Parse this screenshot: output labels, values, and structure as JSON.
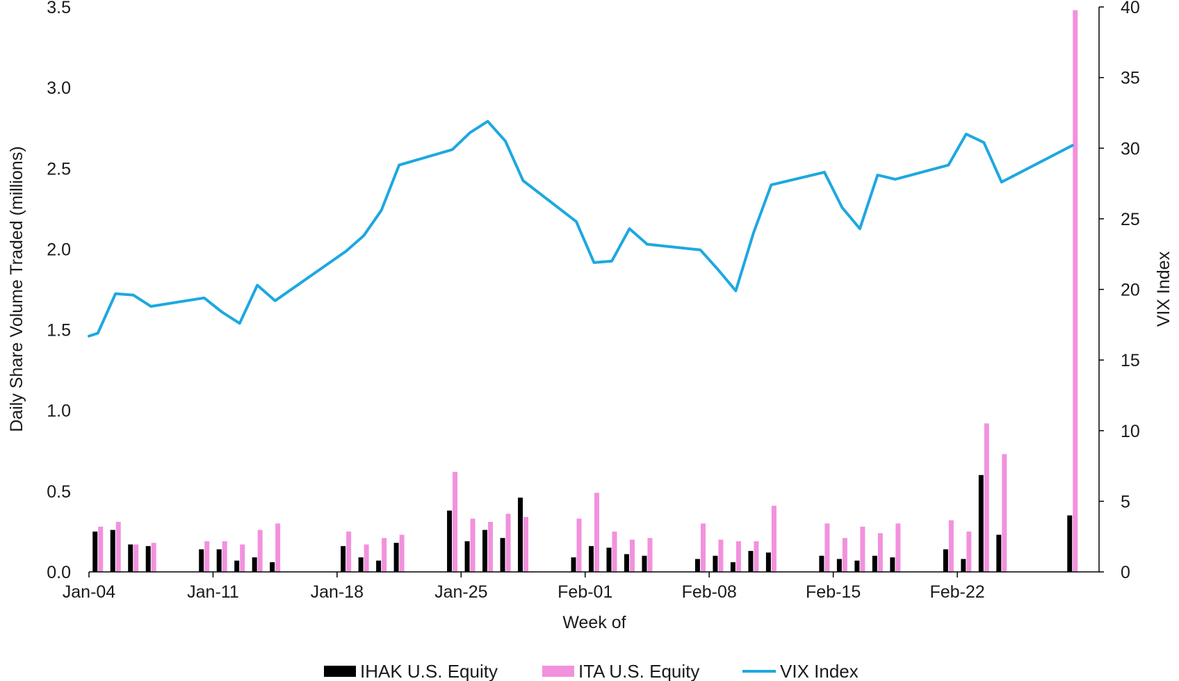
{
  "chart_data": {
    "type": "bar",
    "xlabel": "Week of",
    "ylabel_left": "Daily Share Volume Traded (millions)",
    "ylabel_right": "VIX Index",
    "ylim_left": [
      0,
      3.5
    ],
    "yticks_left": [
      "0.0",
      "0.5",
      "1.0",
      "1.5",
      "2.0",
      "2.5",
      "3.0",
      "3.5"
    ],
    "ylim_right": [
      0,
      40
    ],
    "yticks_right": [
      "0",
      "5",
      "10",
      "15",
      "20",
      "25",
      "30",
      "35",
      "40"
    ],
    "xlim": [
      0,
      57
    ],
    "xtick_labels": [
      {
        "label": "Jan-04",
        "x": 0
      },
      {
        "label": "Jan-11",
        "x": 7
      },
      {
        "label": "Jan-18",
        "x": 14
      },
      {
        "label": "Jan-25",
        "x": 21
      },
      {
        "label": "Feb-01",
        "x": 28
      },
      {
        "label": "Feb-08",
        "x": 35
      },
      {
        "label": "Feb-15",
        "x": 42
      },
      {
        "label": "Feb-22",
        "x": 49
      }
    ],
    "grid": false,
    "legend_position": "bottom",
    "series": [
      {
        "name": "IHAK U.S. Equity",
        "type": "bar",
        "axis": "left",
        "color": "#000000",
        "points": [
          [
            0.5,
            0.25
          ],
          [
            1.5,
            0.26
          ],
          [
            2.5,
            0.17
          ],
          [
            3.5,
            0.16
          ],
          [
            6.5,
            0.14
          ],
          [
            7.5,
            0.14
          ],
          [
            8.5,
            0.07
          ],
          [
            9.5,
            0.09
          ],
          [
            10.5,
            0.06
          ],
          [
            14.5,
            0.16
          ],
          [
            15.5,
            0.09
          ],
          [
            16.5,
            0.07
          ],
          [
            17.5,
            0.18
          ],
          [
            20.5,
            0.38
          ],
          [
            21.5,
            0.19
          ],
          [
            22.5,
            0.26
          ],
          [
            23.5,
            0.21
          ],
          [
            24.5,
            0.46
          ],
          [
            27.5,
            0.09
          ],
          [
            28.5,
            0.16
          ],
          [
            29.5,
            0.15
          ],
          [
            30.5,
            0.11
          ],
          [
            31.5,
            0.1
          ],
          [
            34.5,
            0.08
          ],
          [
            35.5,
            0.1
          ],
          [
            36.5,
            0.06
          ],
          [
            37.5,
            0.13
          ],
          [
            38.5,
            0.12
          ],
          [
            41.5,
            0.1
          ],
          [
            42.5,
            0.08
          ],
          [
            43.5,
            0.07
          ],
          [
            44.5,
            0.1
          ],
          [
            45.5,
            0.09
          ],
          [
            48.5,
            0.14
          ],
          [
            49.5,
            0.08
          ],
          [
            50.5,
            0.6
          ],
          [
            51.5,
            0.23
          ],
          [
            55.5,
            0.35
          ]
        ]
      },
      {
        "name": "ITA U.S. Equity",
        "type": "bar",
        "axis": "left",
        "color": "#f291dd",
        "points": [
          [
            0.5,
            0.28
          ],
          [
            1.5,
            0.31
          ],
          [
            2.5,
            0.17
          ],
          [
            3.5,
            0.18
          ],
          [
            6.5,
            0.19
          ],
          [
            7.5,
            0.19
          ],
          [
            8.5,
            0.17
          ],
          [
            9.5,
            0.26
          ],
          [
            10.5,
            0.3
          ],
          [
            14.5,
            0.25
          ],
          [
            15.5,
            0.17
          ],
          [
            16.5,
            0.21
          ],
          [
            17.5,
            0.23
          ],
          [
            20.5,
            0.62
          ],
          [
            21.5,
            0.33
          ],
          [
            22.5,
            0.31
          ],
          [
            23.5,
            0.36
          ],
          [
            24.5,
            0.34
          ],
          [
            27.5,
            0.33
          ],
          [
            28.5,
            0.49
          ],
          [
            29.5,
            0.25
          ],
          [
            30.5,
            0.2
          ],
          [
            31.5,
            0.21
          ],
          [
            34.5,
            0.3
          ],
          [
            35.5,
            0.2
          ],
          [
            36.5,
            0.19
          ],
          [
            37.5,
            0.19
          ],
          [
            38.5,
            0.41
          ],
          [
            41.5,
            0.3
          ],
          [
            42.5,
            0.21
          ],
          [
            43.5,
            0.28
          ],
          [
            44.5,
            0.24
          ],
          [
            45.5,
            0.3
          ],
          [
            48.5,
            0.32
          ],
          [
            49.5,
            0.25
          ],
          [
            50.5,
            0.92
          ],
          [
            51.5,
            0.73
          ],
          [
            55.5,
            3.48
          ]
        ]
      },
      {
        "name": "VIX Index",
        "type": "line",
        "axis": "right",
        "color": "#1da8e0",
        "points": [
          [
            0,
            16.7
          ],
          [
            0.5,
            16.9
          ],
          [
            1.5,
            19.7
          ],
          [
            2.5,
            19.6
          ],
          [
            3.5,
            18.8
          ],
          [
            6.5,
            19.4
          ],
          [
            7.5,
            18.4
          ],
          [
            8.5,
            17.6
          ],
          [
            9.5,
            20.3
          ],
          [
            10.5,
            19.2
          ],
          [
            14.5,
            22.7
          ],
          [
            15.5,
            23.8
          ],
          [
            16.5,
            25.6
          ],
          [
            17.5,
            28.8
          ],
          [
            20.5,
            29.9
          ],
          [
            21.5,
            31.1
          ],
          [
            22.5,
            31.9
          ],
          [
            23.5,
            30.5
          ],
          [
            24.5,
            27.7
          ],
          [
            27.5,
            24.8
          ],
          [
            28.5,
            21.9
          ],
          [
            29.5,
            22.0
          ],
          [
            30.5,
            24.3
          ],
          [
            31.5,
            23.2
          ],
          [
            34.5,
            22.8
          ],
          [
            35.5,
            21.4
          ],
          [
            36.5,
            19.9
          ],
          [
            37.5,
            24.0
          ],
          [
            38.5,
            27.4
          ],
          [
            41.5,
            28.3
          ],
          [
            42.5,
            25.8
          ],
          [
            43.5,
            24.3
          ],
          [
            44.5,
            28.1
          ],
          [
            45.5,
            27.8
          ],
          [
            48.5,
            28.8
          ],
          [
            49.5,
            31.0
          ],
          [
            50.5,
            30.4
          ],
          [
            51.5,
            27.6
          ],
          [
            55.5,
            30.2
          ]
        ]
      }
    ]
  }
}
